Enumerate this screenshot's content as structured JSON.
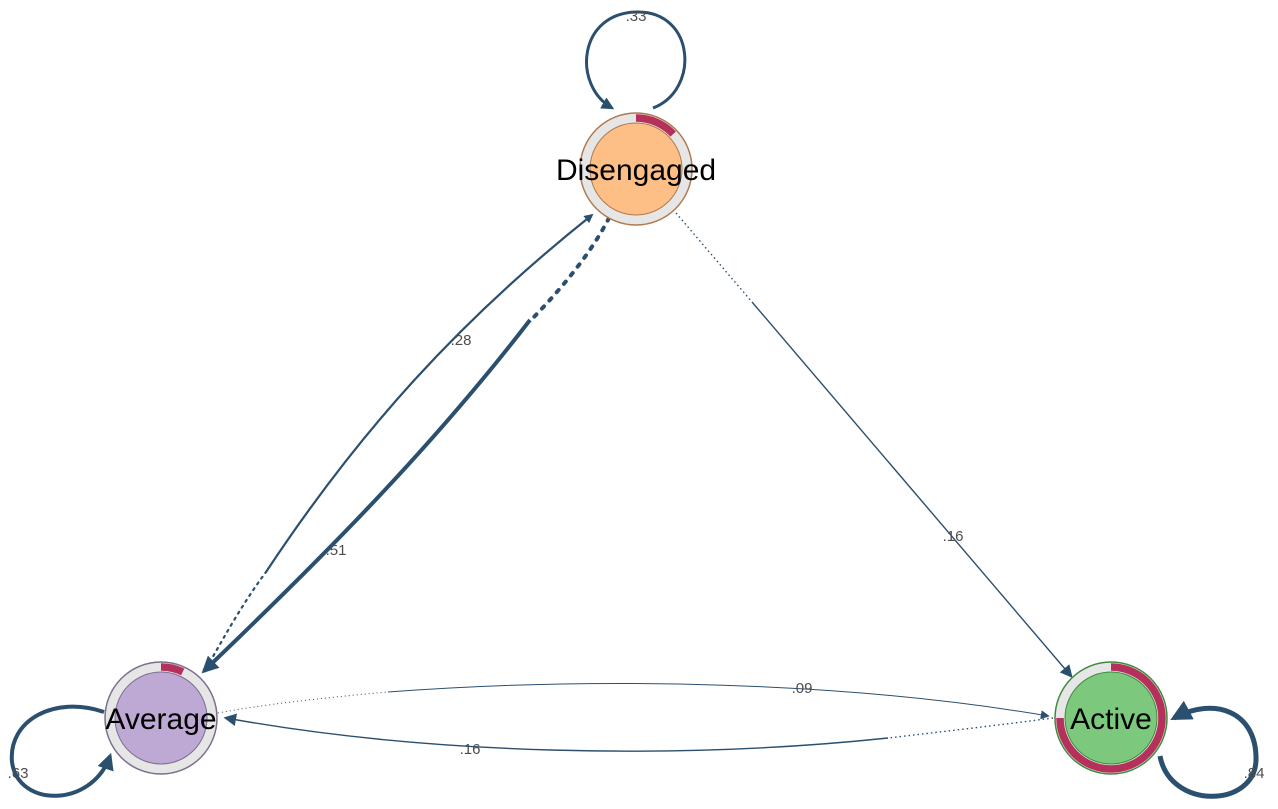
{
  "nodes": [
    {
      "id": "disengaged",
      "label": "Disengaged",
      "fill": "#FDBF85",
      "border": "#B07A4F",
      "pie_fraction": 0.13
    },
    {
      "id": "average",
      "label": "Average",
      "fill": "#BDA9D3",
      "border": "#7D6E8E",
      "pie_fraction": 0.07
    },
    {
      "id": "active",
      "label": "Active",
      "fill": "#7CC97D",
      "border": "#3E8A3E",
      "pie_fraction": 0.75
    }
  ],
  "edges": [
    {
      "id": "disengaged-disengaged",
      "from": "Disengaged",
      "to": "Disengaged",
      "weight_label": ".33"
    },
    {
      "id": "average-average",
      "from": "Average",
      "to": "Average",
      "weight_label": ".63"
    },
    {
      "id": "active-active",
      "from": "Active",
      "to": "Active",
      "weight_label": ".84"
    },
    {
      "id": "average-disengaged",
      "from": "Average",
      "to": "Disengaged",
      "weight_label": ".28"
    },
    {
      "id": "disengaged-average",
      "from": "Disengaged",
      "to": "Average",
      "weight_label": ".51"
    },
    {
      "id": "disengaged-active",
      "from": "Disengaged",
      "to": "Active",
      "weight_label": ".16"
    },
    {
      "id": "average-active",
      "from": "Average",
      "to": "Active",
      "weight_label": ".09"
    },
    {
      "id": "active-average",
      "from": "Active",
      "to": "Average",
      "weight_label": ".16"
    }
  ],
  "colors": {
    "edge": "#2B4F6E",
    "pie_segment": "#B5305A",
    "pie_track": "#E6E6E6"
  }
}
